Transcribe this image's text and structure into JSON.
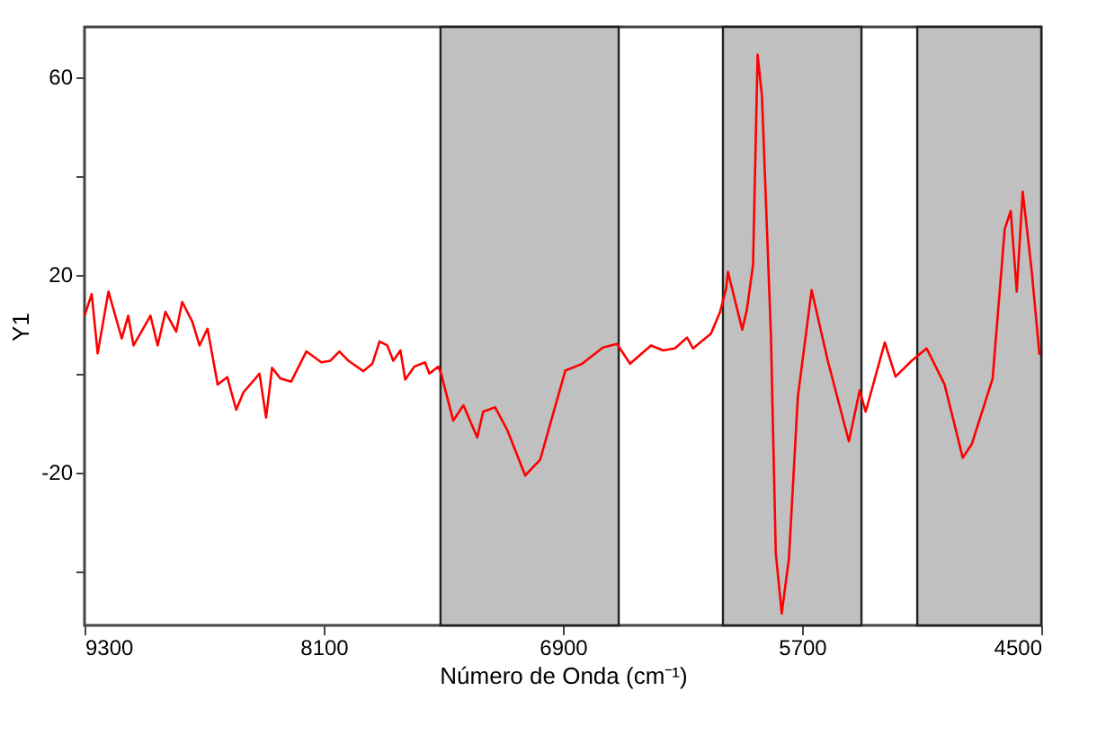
{
  "chart_data": {
    "type": "line",
    "xlabel": "Número de Onda (cm⁻¹)",
    "ylabel": "Y1",
    "xlim": [
      9300,
      4500
    ],
    "xticks": [
      9300,
      8100,
      6900,
      5700,
      4500
    ],
    "ylim": [
      -51,
      70
    ],
    "yticks": [
      {
        "value": -40,
        "label": null
      },
      -20,
      {
        "value": 0,
        "label": null
      },
      20,
      {
        "value": 40,
        "label": null
      },
      60
    ],
    "grid": false,
    "marker": "none",
    "line_style": "solid",
    "bands": [
      {
        "axis": "x",
        "from": 7514,
        "to": 6620,
        "color": "#c0c0c0"
      },
      {
        "axis": "x",
        "from": 6097,
        "to": 5402,
        "color": "#c0c0c0"
      },
      {
        "axis": "x",
        "from": 5122,
        "to": 4500,
        "color": "#c0c0c0"
      }
    ],
    "series": [
      {
        "color": "#ff0000",
        "x": [
          9300,
          9264,
          9234,
          9180,
          9113,
          9081,
          9054,
          8969,
          8933,
          8894,
          8840,
          8810,
          8759,
          8723,
          8683,
          8632,
          8584,
          8539,
          8503,
          8422,
          8389,
          8359,
          8317,
          8263,
          8187,
          8112,
          8067,
          8021,
          7976,
          7901,
          7856,
          7820,
          7781,
          7751,
          7715,
          7691,
          7646,
          7592,
          7570,
          7525,
          7511,
          7450,
          7399,
          7330,
          7300,
          7240,
          7180,
          7089,
          7014,
          6888,
          6803,
          6699,
          6629,
          6563,
          6458,
          6397,
          6338,
          6277,
          6247,
          6157,
          6112,
          6081,
          6072,
          6000,
          5977,
          5946,
          5923,
          5901,
          5856,
          5832,
          5802,
          5766,
          5721,
          5652,
          5571,
          5465,
          5411,
          5381,
          5285,
          5231,
          5150,
          5075,
          4985,
          4894,
          4849,
          4744,
          4683,
          4653,
          4623,
          4593,
          4548,
          4509
        ],
        "values": [
          11.6,
          16,
          4,
          16.5,
          7,
          11.6,
          5.6,
          11.6,
          5.6,
          12.4,
          8.4,
          14.4,
          10.4,
          5.6,
          9,
          -2.3,
          -0.8,
          -7.4,
          -3.9,
          -0.1,
          -9,
          1.1,
          -1.1,
          -1.7,
          4.4,
          2.2,
          2.5,
          4.4,
          2.5,
          0.4,
          1.9,
          6.4,
          5.6,
          2.5,
          4.6,
          -1.3,
          1.3,
          2.2,
          -0.1,
          1.3,
          -0.1,
          -9.6,
          -6.5,
          -13,
          -7.8,
          -6.9,
          -11.4,
          -20.7,
          -17.5,
          0.5,
          1.9,
          5.2,
          5.9,
          1.9,
          5.6,
          4.6,
          5,
          7.2,
          5,
          8,
          12.3,
          17.1,
          20.5,
          8.8,
          12.8,
          21.9,
          64.4,
          55.9,
          7.4,
          -36.3,
          -48.6,
          -37.5,
          -4.7,
          16.8,
          2.5,
          -13.8,
          -3.5,
          -7.8,
          6.2,
          -0.7,
          2.5,
          5,
          -2.3,
          -17.1,
          -14.4,
          -1.1,
          29.2,
          32.8,
          16.5,
          36.7,
          20.7,
          3.7
        ]
      }
    ]
  }
}
